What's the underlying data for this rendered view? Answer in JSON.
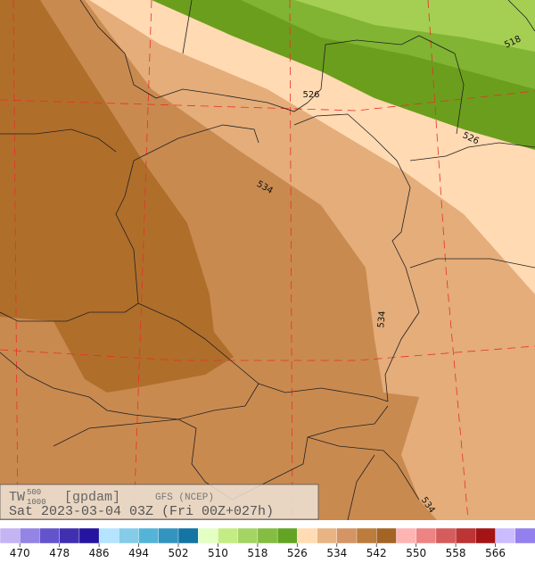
{
  "header": {
    "title": "TW",
    "title_sup": "500",
    "title_sub": "1000",
    "units": "[gpdam]",
    "model": "GFS (NCEP)",
    "valid": "Sat 2023-03-04 03Z (Fri 00Z+027h)"
  },
  "contour_labels": [
    526,
    534,
    518,
    526,
    534,
    534
  ],
  "colorbar": {
    "labels": [
      470,
      478,
      486,
      494,
      502,
      510,
      518,
      526,
      534,
      542,
      550,
      558,
      566
    ],
    "colors": [
      "#c4b4f4",
      "#9484e4",
      "#6454cc",
      "#4030b0",
      "#2414a0",
      "#b4e4ff",
      "#84cce8",
      "#54b4d8",
      "#3494c0",
      "#1474a4",
      "#e4ffc4",
      "#c4ec84",
      "#a4d464",
      "#84bc44",
      "#64a424",
      "#ffdcb4",
      "#e8b484",
      "#d49464",
      "#bc7c3c",
      "#a46424",
      "#ffb4b4",
      "#ec8484",
      "#d45c5c",
      "#bc3434",
      "#a41414",
      "#ccbcff",
      "#9480ec"
    ]
  }
}
